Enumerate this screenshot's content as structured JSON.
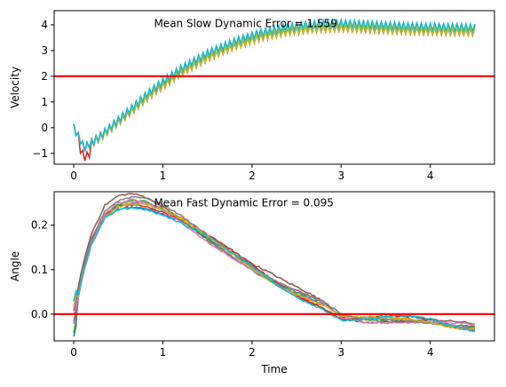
{
  "chart_data": [
    {
      "type": "line",
      "panel": "top",
      "ylabel": "Velocity",
      "xlabel": "",
      "xlim": [
        -0.22,
        4.72
      ],
      "ylim": [
        -1.42,
        4.55
      ],
      "xticks": [
        0,
        1,
        2,
        3,
        4
      ],
      "yticks": [
        -1,
        0,
        1,
        2,
        3,
        4
      ],
      "xtick_labels": [
        "0",
        "1",
        "2",
        "3",
        "4"
      ],
      "ytick_labels": [
        "−1",
        "0",
        "1",
        "2",
        "3",
        "4"
      ],
      "annotation": {
        "text": "Mean Slow Dynamic Error = 1.559",
        "x": 0.9,
        "y": 4.05
      },
      "reference_line": {
        "y": 2.0,
        "color": "#ff0000"
      },
      "grid": false,
      "series_colors": [
        "#1f77b4",
        "#ff7f0e",
        "#2ca02c",
        "#d62728",
        "#9467bd",
        "#8c564b",
        "#e377c2",
        "#7f7f7f",
        "#bcbd22",
        "#17becf"
      ],
      "profile": {
        "x": [
          0,
          0.12,
          0.3,
          0.6,
          0.9,
          1.2,
          1.5,
          1.8,
          2.1,
          2.4,
          2.7,
          3.0,
          3.3,
          3.6,
          4.0,
          4.5
        ],
        "y": [
          0.0,
          -0.8,
          -0.35,
          0.55,
          1.45,
          2.2,
          2.8,
          3.25,
          3.6,
          3.82,
          3.93,
          3.96,
          3.92,
          3.87,
          3.83,
          3.8
        ]
      }
    },
    {
      "type": "line",
      "panel": "bottom",
      "ylabel": "Angle",
      "xlabel": "Time",
      "xlim": [
        -0.22,
        4.72
      ],
      "ylim": [
        -0.06,
        0.275
      ],
      "xticks": [
        0,
        1,
        2,
        3,
        4
      ],
      "yticks": [
        0.0,
        0.1,
        0.2
      ],
      "xtick_labels": [
        "0",
        "1",
        "2",
        "3",
        "4"
      ],
      "ytick_labels": [
        "0.0",
        "0.1",
        "0.2"
      ],
      "annotation": {
        "text": "Mean Fast Dynamic Error = 0.095",
        "x": 0.9,
        "y": 0.25
      },
      "reference_line": {
        "y": 0.0,
        "color": "#ff0000"
      },
      "grid": false,
      "series_colors": [
        "#1f77b4",
        "#ff7f0e",
        "#2ca02c",
        "#d62728",
        "#9467bd",
        "#8c564b",
        "#e377c2",
        "#7f7f7f",
        "#bcbd22",
        "#17becf"
      ],
      "profile": {
        "x": [
          0,
          0.1,
          0.2,
          0.35,
          0.5,
          0.65,
          0.8,
          1.0,
          1.2,
          1.4,
          1.6,
          1.8,
          2.0,
          2.2,
          2.4,
          2.6,
          2.8,
          3.0,
          3.2,
          3.5,
          3.8,
          4.0,
          4.2,
          4.5
        ],
        "y": [
          0.0,
          0.1,
          0.17,
          0.23,
          0.25,
          0.255,
          0.25,
          0.232,
          0.21,
          0.185,
          0.16,
          0.135,
          0.11,
          0.085,
          0.06,
          0.04,
          0.02,
          -0.01,
          -0.015,
          -0.012,
          -0.01,
          -0.012,
          -0.02,
          -0.03
        ]
      }
    }
  ]
}
